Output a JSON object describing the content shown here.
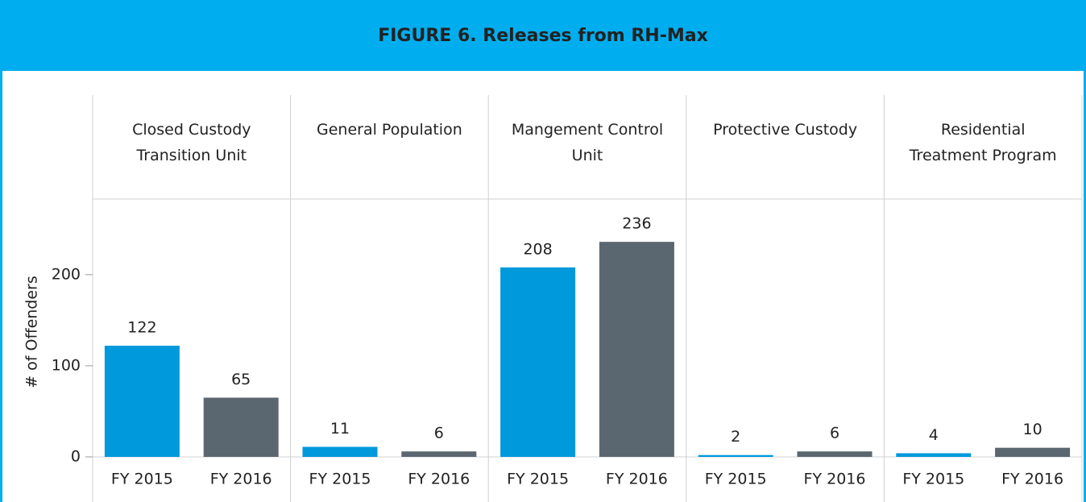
{
  "chart_data": {
    "type": "bar",
    "title": "FIGURE 6. Releases from RH-Max",
    "y_label": "# of Offenders",
    "categories": [
      "Closed Custody Transition Unit",
      "General Population",
      "Mangement Control Unit",
      "Protective Custody",
      "Residential Treatment Program"
    ],
    "series": [
      {
        "name": "FY 2015",
        "color": "#0099dc",
        "values": [
          122,
          11,
          208,
          2,
          4
        ]
      },
      {
        "name": "FY 2016",
        "color": "#5b6770",
        "values": [
          65,
          6,
          236,
          6,
          10
        ]
      }
    ],
    "ylim": [
      0,
      283
    ],
    "yticks": [
      0,
      100,
      200
    ]
  }
}
